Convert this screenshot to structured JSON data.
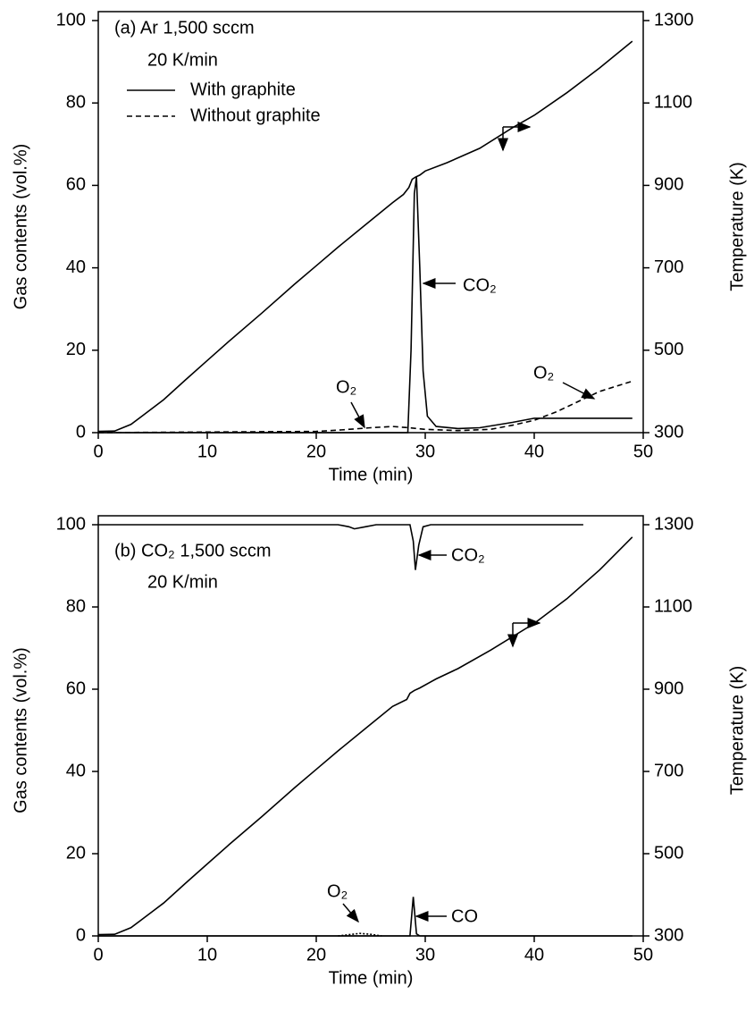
{
  "chart_data": [
    {
      "type": "line",
      "title": "(a) Ar 1,500 sccm",
      "subtitle": "20 K/min",
      "xlabel": "Time (min)",
      "ylabel": "Gas contents (vol.%)",
      "y2label": "Temperature (K)",
      "xlim": [
        0,
        50
      ],
      "xticks": [
        0,
        10,
        20,
        30,
        40,
        50
      ],
      "ylim": [
        0,
        100
      ],
      "yticks": [
        0,
        20,
        40,
        60,
        80,
        100
      ],
      "y2lim": [
        300,
        1300
      ],
      "y2ticks": [
        300,
        500,
        700,
        900,
        1100,
        1300
      ],
      "legend": [
        {
          "label": "With graphite",
          "dash": "solid"
        },
        {
          "label": "Without graphite",
          "dash": "dashed"
        }
      ],
      "annotations": [
        "CO₂",
        "O₂",
        "O₂"
      ],
      "series": [
        {
          "color": "#000000",
          "dash": "solid",
          "axis": "y2",
          "x": [
            0,
            1.5,
            3,
            4,
            6,
            8,
            10,
            12,
            15,
            18,
            20,
            22,
            25,
            27,
            28,
            28.5,
            28.8,
            29.1,
            29.5,
            30,
            32,
            35,
            38,
            40,
            43,
            46,
            49
          ],
          "values": [
            303,
            304,
            320,
            340,
            380,
            428,
            475,
            522,
            590,
            660,
            705,
            750,
            815,
            858,
            878,
            895,
            915,
            920,
            925,
            935,
            955,
            990,
            1040,
            1070,
            1125,
            1185,
            1250
          ]
        },
        {
          "color": "#000000",
          "dash": "solid",
          "x": [
            0,
            28.4,
            28.7,
            29,
            29.2,
            29.5,
            29.8,
            30.2,
            31,
            33,
            35,
            38,
            40,
            42,
            45,
            49
          ],
          "values": [
            0,
            0,
            20,
            58,
            62,
            40,
            15,
            4,
            1.5,
            1,
            1.2,
            2.5,
            3.5,
            3.5,
            3.5,
            3.5
          ]
        },
        {
          "color": "#000000",
          "dash": "dashed",
          "x": [
            0,
            20,
            22,
            25,
            27,
            28.5,
            30,
            33,
            36,
            38,
            40,
            42,
            44,
            46,
            49
          ],
          "values": [
            0,
            0.3,
            0.6,
            1.2,
            1.5,
            1.2,
            0.8,
            0.5,
            0.8,
            1.8,
            3,
            5,
            7.5,
            10,
            12.5
          ]
        }
      ]
    },
    {
      "type": "line",
      "title": "(b) CO₂ 1,500 sccm",
      "subtitle": "20 K/min",
      "xlabel": "Time (min)",
      "ylabel": "Gas contents (vol.%)",
      "y2label": "Temperature (K)",
      "xlim": [
        0,
        50
      ],
      "xticks": [
        0,
        10,
        20,
        30,
        40,
        50
      ],
      "ylim": [
        0,
        100
      ],
      "yticks": [
        0,
        20,
        40,
        60,
        80,
        100
      ],
      "y2lim": [
        300,
        1300
      ],
      "y2ticks": [
        300,
        500,
        700,
        900,
        1100,
        1300
      ],
      "annotations": [
        "CO₂",
        "CO",
        "O₂"
      ],
      "series": [
        {
          "color": "#000000",
          "dash": "solid",
          "x": [
            0,
            22,
            23,
            23.5,
            24.5,
            25.5,
            28.6,
            28.9,
            29.1,
            29.4,
            29.8,
            30.5,
            44.5
          ],
          "values": [
            100,
            100,
            99.5,
            99,
            99.5,
            100,
            100,
            96,
            89,
            95,
            99.5,
            100,
            100
          ]
        },
        {
          "color": "#000000",
          "dash": "solid",
          "axis": "y2",
          "x": [
            0,
            1.5,
            3,
            4,
            6,
            8,
            10,
            12,
            15,
            18,
            20,
            22,
            25,
            27,
            28.3,
            28.6,
            29,
            29.5,
            31,
            33,
            36,
            40,
            43,
            46,
            49
          ],
          "values": [
            303,
            304,
            320,
            340,
            380,
            428,
            475,
            522,
            590,
            660,
            705,
            750,
            815,
            858,
            875,
            890,
            897,
            903,
            925,
            950,
            995,
            1060,
            1120,
            1190,
            1270
          ]
        },
        {
          "color": "#000000",
          "dash": "solid",
          "x": [
            0,
            28.6,
            28.9,
            29.2,
            29.5,
            49
          ],
          "values": [
            0,
            0,
            9.5,
            0.5,
            0,
            0
          ]
        },
        {
          "color": "#000000",
          "dash": "dotted",
          "x": [
            22,
            23,
            24,
            25,
            26
          ],
          "values": [
            0,
            0.3,
            0.6,
            0.4,
            0
          ]
        }
      ]
    }
  ]
}
